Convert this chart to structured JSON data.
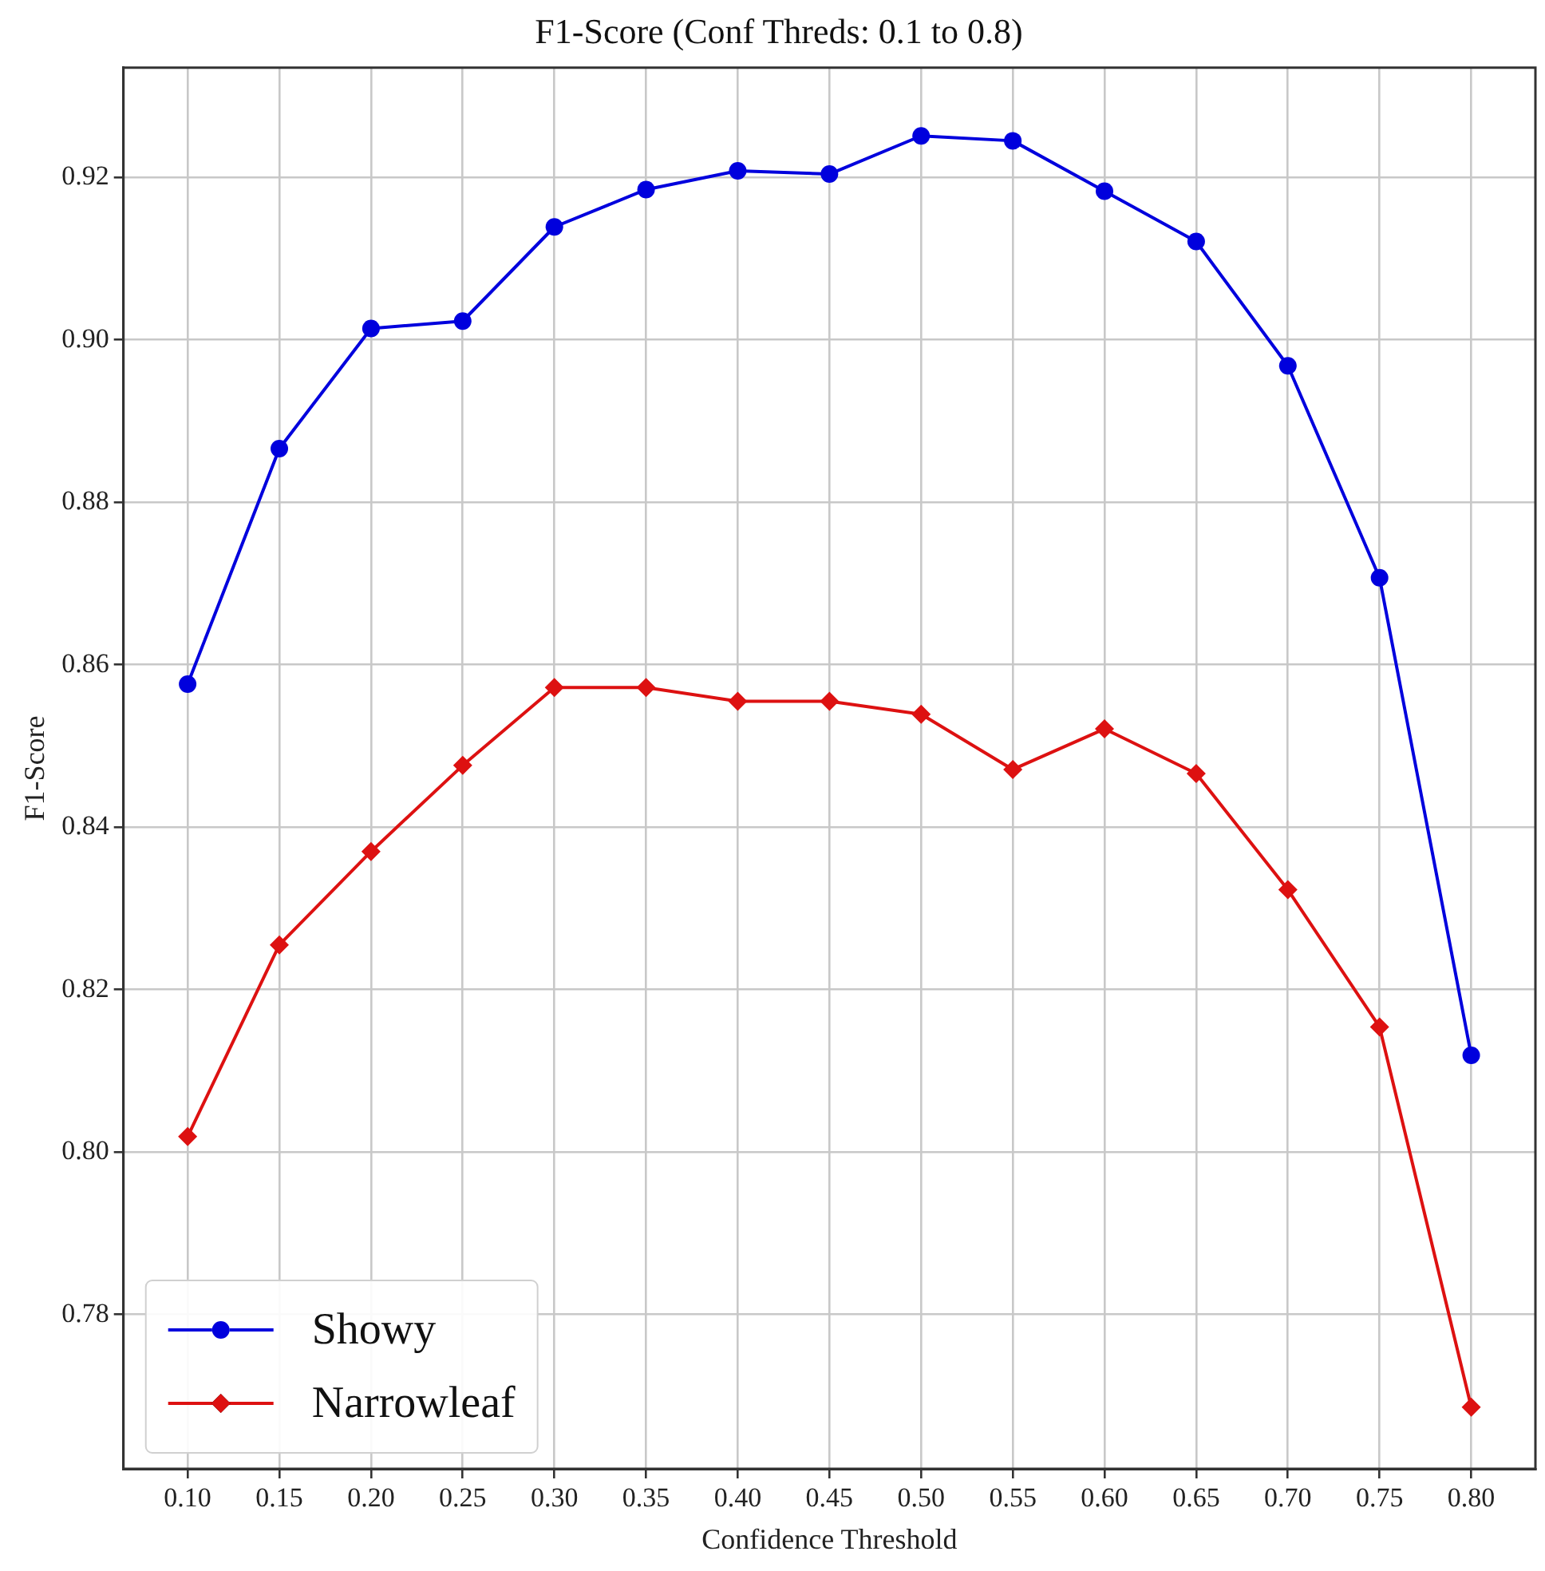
{
  "chart_data": {
    "type": "line",
    "title": "F1-Score (Conf Threds: 0.1 to 0.8)",
    "xlabel": "Confidence Threshold",
    "ylabel": "F1-Score",
    "x": [
      0.1,
      0.15,
      0.2,
      0.25,
      0.3,
      0.35,
      0.4,
      0.45,
      0.5,
      0.55,
      0.6,
      0.65,
      0.7,
      0.75,
      0.8
    ],
    "series": [
      {
        "name": "Showy",
        "color": "#0000dd",
        "marker": "circle",
        "values": [
          0.8576,
          0.8866,
          0.9014,
          0.9023,
          0.9139,
          0.9185,
          0.9208,
          0.9204,
          0.9251,
          0.9245,
          0.9183,
          0.9121,
          0.8968,
          0.8707,
          0.8119
        ]
      },
      {
        "name": "Narrowleaf",
        "color": "#dd1111",
        "marker": "diamond",
        "values": [
          0.8019,
          0.8255,
          0.837,
          0.8476,
          0.8572,
          0.8572,
          0.8555,
          0.8555,
          0.8539,
          0.8471,
          0.8521,
          0.8466,
          0.8323,
          0.8154,
          0.7686
        ]
      }
    ],
    "xlim": [
      0.065,
      0.835
    ],
    "xticks": [
      {
        "value": 0.1,
        "label": "0.10"
      },
      0.15,
      {
        "value": 0.2,
        "label": "0.20"
      },
      0.25,
      {
        "value": 0.3,
        "label": "0.30"
      },
      0.35,
      {
        "value": 0.4,
        "label": "0.40"
      },
      0.45,
      {
        "value": 0.5,
        "label": "0.50"
      },
      0.55,
      {
        "value": 0.6,
        "label": "0.60"
      },
      0.65,
      {
        "value": 0.7,
        "label": "0.70"
      },
      0.75,
      {
        "value": 0.8,
        "label": "0.80"
      }
    ],
    "ylim": [
      0.761,
      0.9335
    ],
    "yticks": [
      0.78,
      {
        "value": 0.8,
        "label": "0.80"
      },
      0.82,
      0.84,
      0.86,
      0.88,
      {
        "value": 0.9,
        "label": "0.90"
      },
      0.92
    ],
    "grid": true,
    "legend": "bottom left",
    "line_style": "solid"
  }
}
